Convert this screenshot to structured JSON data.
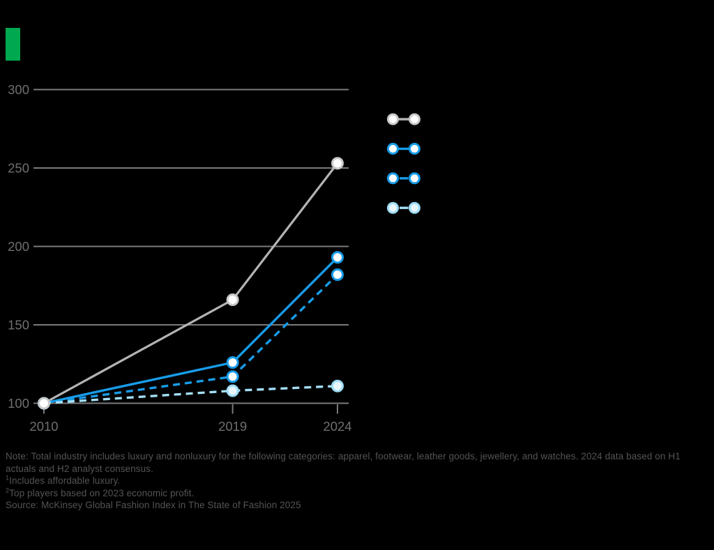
{
  "canvas": {
    "background": "#000000"
  },
  "accent": {
    "color": "#00a84f"
  },
  "chart_data": {
    "type": "line",
    "title": "",
    "x": [
      2010,
      2019,
      2024
    ],
    "x_tick_labels": [
      "2010",
      "2019",
      "2024"
    ],
    "y_ticks": [
      100,
      150,
      200,
      250,
      300
    ],
    "ylim": [
      100,
      300
    ],
    "grid": "horizontal",
    "legend_position": "right-of-plot",
    "axis_color": "#7b7b7b",
    "tick_label_color": "#6f6f6f",
    "series": [
      {
        "name": "",
        "style": "solid",
        "color": "#b4b4b4",
        "marker_fill": "#ffffff",
        "marker_stroke": "#c9c9c9",
        "values": [
          100,
          166,
          253
        ]
      },
      {
        "name": "",
        "style": "solid",
        "color": "#189ce8",
        "marker_fill": "#ffffff",
        "marker_stroke": "#189ce8",
        "values": [
          100,
          126,
          193
        ]
      },
      {
        "name": "",
        "style": "dashed",
        "color": "#189ce8",
        "marker_fill": "#ffffff",
        "marker_stroke": "#189ce8",
        "values": [
          100,
          117,
          182
        ]
      },
      {
        "name": "",
        "style": "dashed",
        "color": "#a3def6",
        "marker_fill": "#e9f7fd",
        "marker_stroke": "#9edcf6",
        "values": [
          100,
          108,
          111
        ]
      }
    ]
  },
  "notes": {
    "line1": "Note: Total industry includes luxury and nonluxury for the following categories: apparel, footwear, leather goods, jewellery, and watches. 2024 data based on H1",
    "line2": "actuals and H2 analyst consensus.",
    "fn1": {
      "sup": "1",
      "text": "Includes affordable luxury."
    },
    "fn2": {
      "sup": "2",
      "text": "Top players based on 2023 economic profit."
    },
    "source": "Source: McKinsey Global Fashion Index in The State of Fashion 2025"
  }
}
